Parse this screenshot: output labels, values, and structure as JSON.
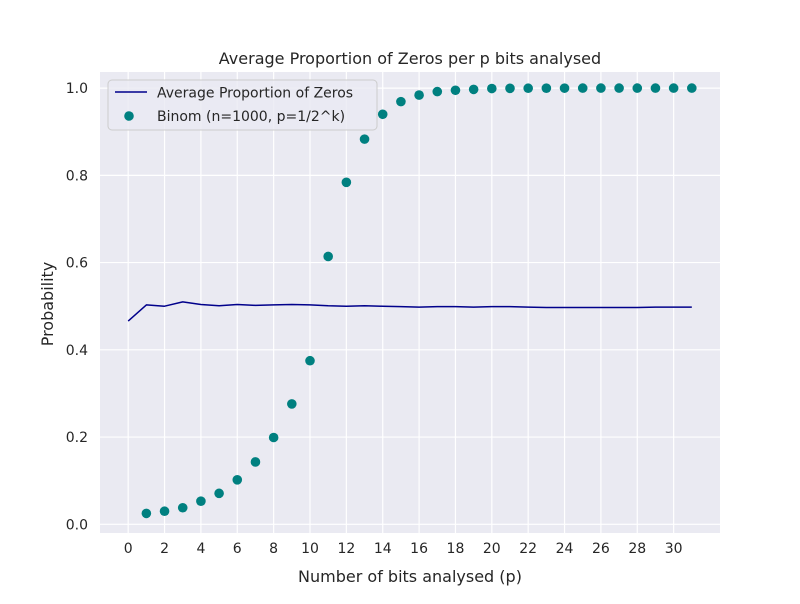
{
  "chart_data": {
    "type": "line+scatter",
    "title": "Average Proportion of Zeros per p bits analysed",
    "xlabel": "Number of bits analysed (p)",
    "ylabel": "Probability",
    "xlim": [
      -1.55,
      32.55
    ],
    "ylim": [
      -0.0199,
      1.0369
    ],
    "xticks": [
      0,
      2,
      4,
      6,
      8,
      10,
      12,
      14,
      16,
      18,
      20,
      22,
      24,
      26,
      28,
      30
    ],
    "yticks": [
      0.0,
      0.2,
      0.4,
      0.6,
      0.8,
      1.0
    ],
    "ytick_labels": [
      "0.0",
      "0.2",
      "0.4",
      "0.6",
      "0.8",
      "1.0"
    ],
    "grid": true,
    "legend_position": "top-left",
    "colors": {
      "background": "#eaeaf2",
      "grid": "#ffffff",
      "line": "#00008b",
      "scatter": "#008080"
    },
    "series": [
      {
        "name": "Average Proportion of Zeros",
        "kind": "line",
        "x": [
          0,
          1,
          2,
          3,
          4,
          5,
          6,
          7,
          8,
          9,
          10,
          11,
          12,
          13,
          14,
          15,
          16,
          17,
          18,
          19,
          20,
          21,
          22,
          23,
          24,
          25,
          26,
          27,
          28,
          29,
          30,
          31
        ],
        "y": [
          0.466,
          0.503,
          0.5,
          0.51,
          0.504,
          0.501,
          0.504,
          0.502,
          0.503,
          0.504,
          0.503,
          0.501,
          0.5,
          0.501,
          0.5,
          0.499,
          0.498,
          0.499,
          0.499,
          0.498,
          0.499,
          0.499,
          0.498,
          0.497,
          0.497,
          0.497,
          0.497,
          0.497,
          0.497,
          0.498,
          0.498,
          0.498
        ]
      },
      {
        "name": "Binom (n=1000, p=1/2^k)",
        "kind": "scatter",
        "x": [
          1,
          2,
          3,
          4,
          5,
          6,
          7,
          8,
          9,
          10,
          11,
          12,
          13,
          14,
          15,
          16,
          17,
          18,
          19,
          20,
          21,
          22,
          23,
          24,
          25,
          26,
          27,
          28,
          29,
          30,
          31
        ],
        "y": [
          0.025,
          0.03,
          0.038,
          0.053,
          0.071,
          0.102,
          0.143,
          0.199,
          0.276,
          0.375,
          0.614,
          0.784,
          0.883,
          0.94,
          0.969,
          0.984,
          0.992,
          0.995,
          0.997,
          0.999,
          0.9995,
          0.9997,
          0.9998,
          0.9999,
          1.0,
          1.0,
          1.0,
          1.0,
          1.0,
          1.0,
          1.0
        ]
      }
    ]
  }
}
